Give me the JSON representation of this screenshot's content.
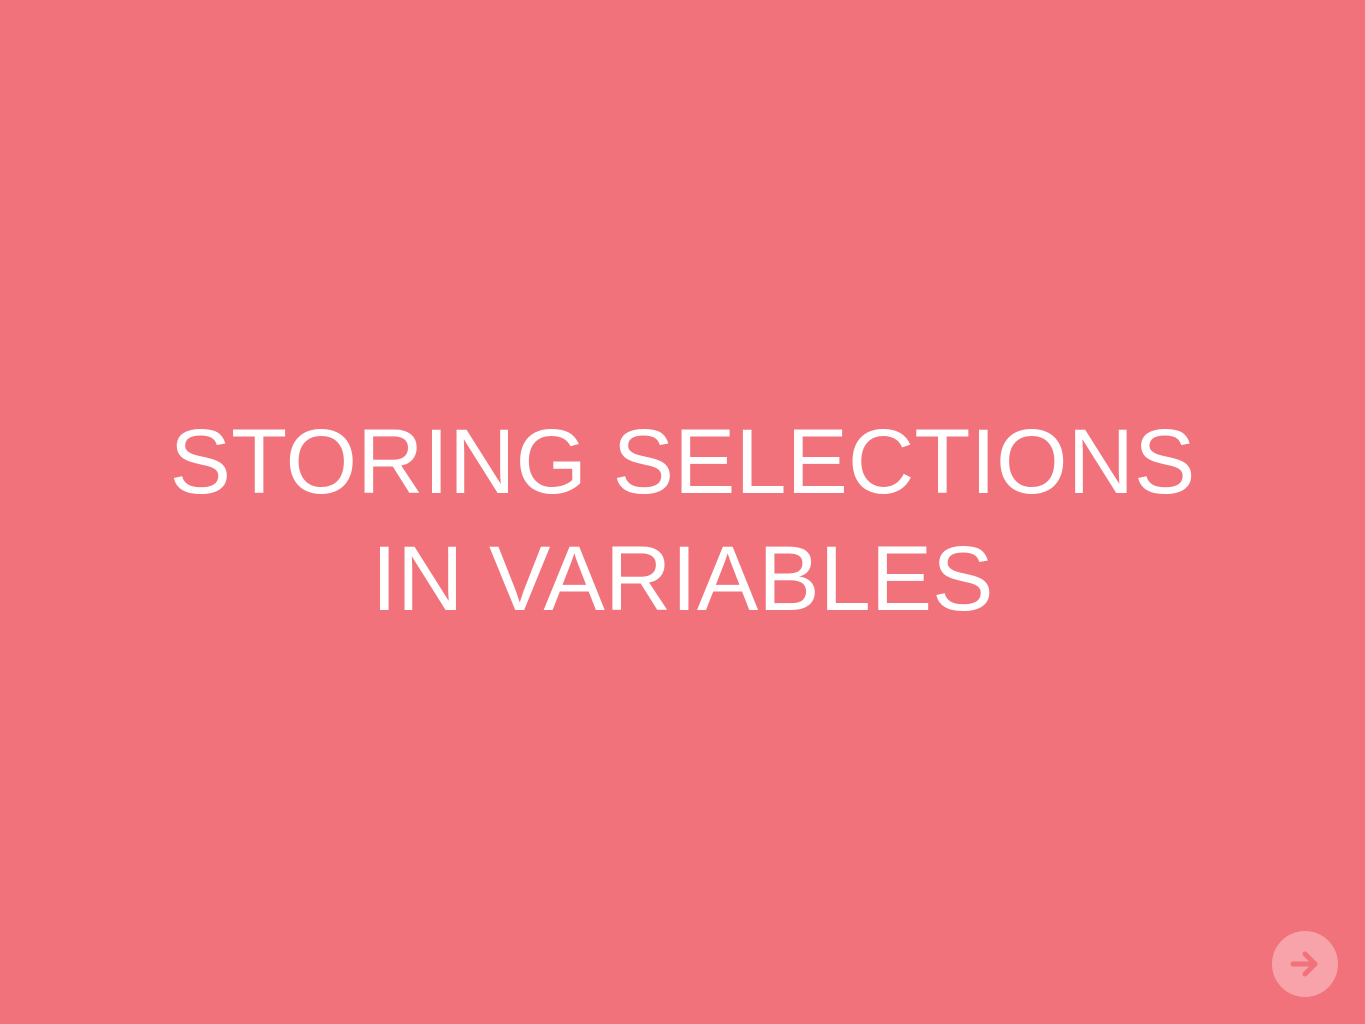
{
  "slide": {
    "title_lines": [
      "STORING SELECTIONS",
      "IN VARIABLES"
    ]
  },
  "navigation": {
    "next_icon": "arrow-right-icon"
  },
  "colors": {
    "background": "#f2727b",
    "text": "#ffffff",
    "button_fill": "#f7a3a9",
    "button_icon": "#f2727b"
  }
}
